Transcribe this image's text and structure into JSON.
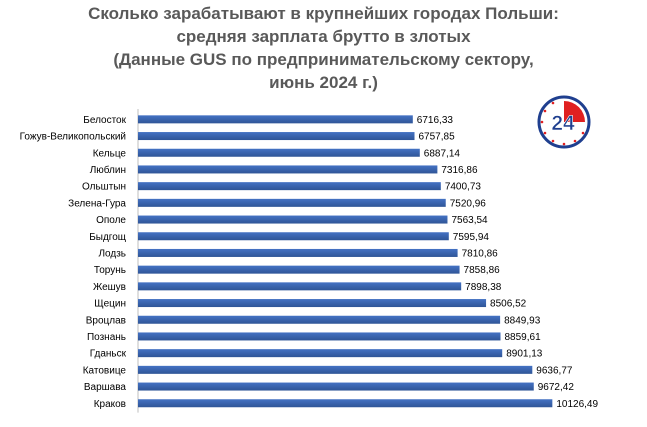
{
  "title_lines": [
    "Сколько зарабатывают в крупнейших городах Польши:",
    "средняя зарплата брутто в злотых",
    "(Данные GUS по предпринимательскому сектору,",
    "июнь 2024 г.)"
  ],
  "logo_text": "24",
  "colors": {
    "bar": "#4472c4",
    "bar_dark": "#2f5597",
    "logo_red": "#e02020",
    "logo_blue": "#1f3f8f",
    "title": "#595959"
  },
  "chart_data": {
    "type": "bar",
    "orientation": "horizontal",
    "categories": [
      "Белосток",
      "Гожув-Великопольский",
      "Кельце",
      "Люблин",
      "Ольштын",
      "Зелена-Гура",
      "Ополе",
      "Быдгощ",
      "Лодзь",
      "Торунь",
      "Жешув",
      "Щецин",
      "Вроцлав",
      "Познань",
      "Гданьск",
      "Катовице",
      "Варшава",
      "Краков"
    ],
    "values": [
      6716.33,
      6757.85,
      6887.14,
      7316.86,
      7400.73,
      7520.96,
      7563.54,
      7595.94,
      7810.86,
      7858.86,
      7898.38,
      8506.52,
      8849.93,
      8859.61,
      8901.13,
      9636.77,
      9672.42,
      10126.49
    ],
    "value_labels": [
      "6716,33",
      "6757,85",
      "6887,14",
      "7316,86",
      "7400,73",
      "7520,96",
      "7563,54",
      "7595,94",
      "7810,86",
      "7858,86",
      "7898,38",
      "8506,52",
      "8849,93",
      "8859,61",
      "8901,13",
      "9636,77",
      "9672,42",
      "10126,49"
    ],
    "xlim": [
      0,
      12000
    ],
    "x_ticks": [
      0,
      2000,
      4000,
      6000,
      8000,
      10000,
      12000
    ],
    "x_tick_labels": [
      "0,00",
      "2000,00",
      "4000,00",
      "6000,00",
      "8000,00",
      "10000,00",
      "12000,00"
    ],
    "grid": false,
    "legend": "none"
  }
}
